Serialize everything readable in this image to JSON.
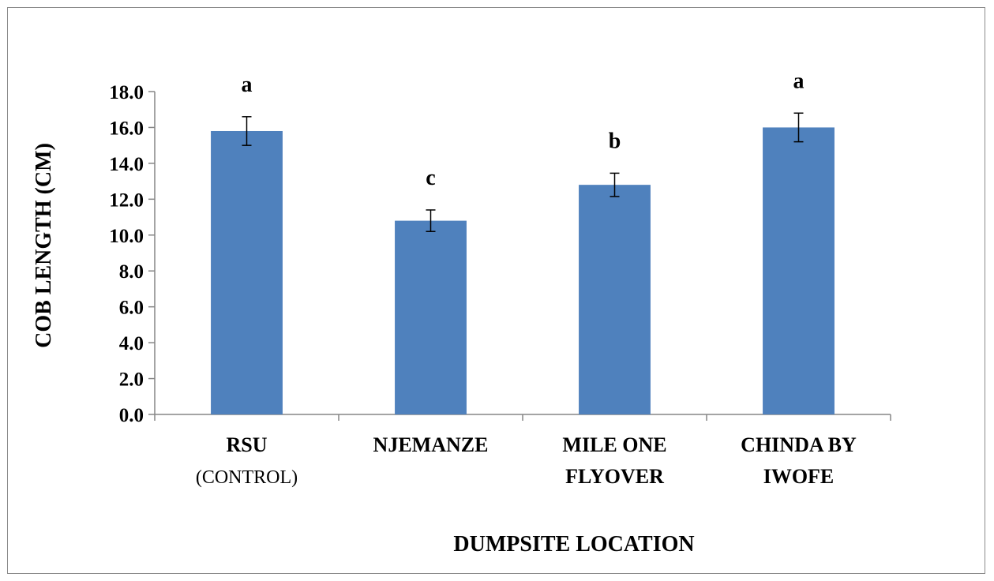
{
  "chart_data": {
    "type": "bar",
    "categories": [
      {
        "lines": [
          "RSU",
          "(CONTROL)"
        ]
      },
      {
        "lines": [
          "NJEMANZE"
        ]
      },
      {
        "lines": [
          "MILE ONE",
          "FLYOVER"
        ]
      },
      {
        "lines": [
          "CHINDA BY",
          "IWOFE"
        ]
      }
    ],
    "values": [
      15.8,
      10.8,
      12.8,
      16.0
    ],
    "errors": [
      0.8,
      0.6,
      0.65,
      0.8
    ],
    "significance_labels": [
      "a",
      "c",
      "b",
      "a"
    ],
    "xlabel": "DUMPSITE LOCATION",
    "ylabel": "COB LENGTH (CM)",
    "ylim": [
      0,
      18
    ],
    "yticks": [
      "0.0",
      "2.0",
      "4.0",
      "6.0",
      "8.0",
      "10.0",
      "12.0",
      "14.0",
      "16.0",
      "18.0"
    ],
    "grid": false,
    "legend": "none",
    "bar_color": "#4f81bd"
  }
}
